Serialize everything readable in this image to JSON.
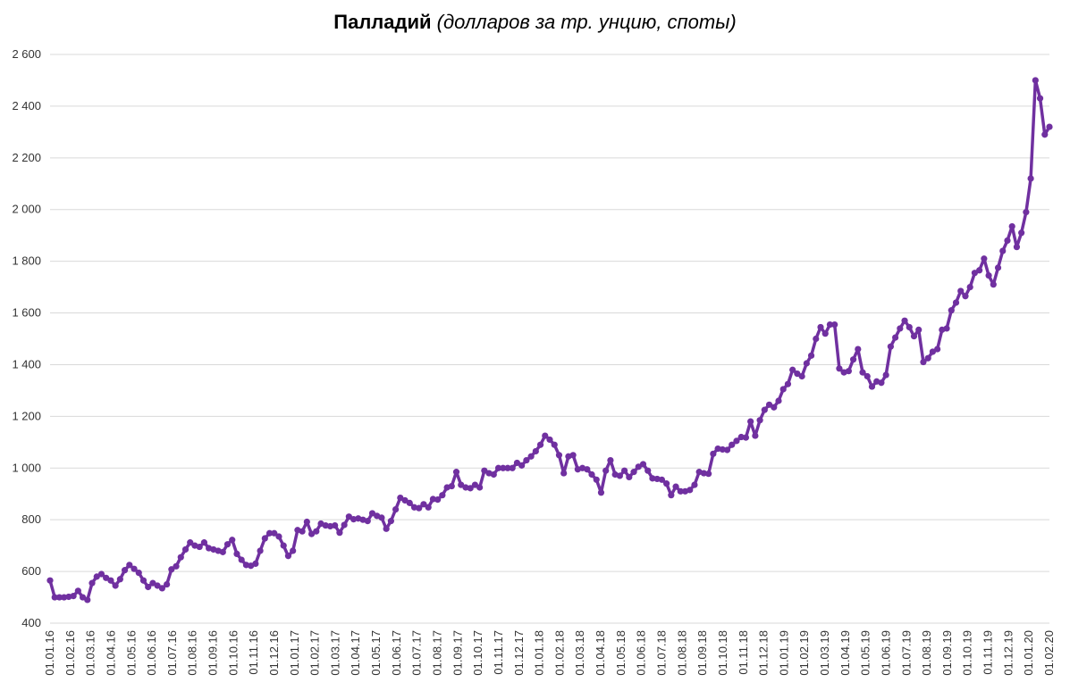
{
  "chart_data": {
    "type": "line",
    "title": "Палладий",
    "subtitle": "(долларов за тр. унцию, споты)",
    "xlabel": "",
    "ylabel": "",
    "ylim": [
      400,
      2600
    ],
    "yticks": [
      "400",
      "600",
      "800",
      "1 000",
      "1 200",
      "1 400",
      "1 600",
      "1 800",
      "2 000",
      "2 200",
      "2 400",
      "2 600"
    ],
    "ytick_values": [
      400,
      600,
      800,
      1000,
      1200,
      1400,
      1600,
      1800,
      2000,
      2200,
      2400,
      2600
    ],
    "xticks": [
      "01.01.16",
      "01.02.16",
      "01.03.16",
      "01.04.16",
      "01.05.16",
      "01.06.16",
      "01.07.16",
      "01.08.16",
      "01.09.16",
      "01.10.16",
      "01.11.16",
      "01.12.16",
      "01.01.17",
      "01.02.17",
      "01.03.17",
      "01.04.17",
      "01.05.17",
      "01.06.17",
      "01.07.17",
      "01.08.17",
      "01.09.17",
      "01.10.17",
      "01.11.17",
      "01.12.17",
      "01.01.18",
      "01.02.18",
      "01.03.18",
      "01.04.18",
      "01.05.18",
      "01.06.18",
      "01.07.18",
      "01.08.18",
      "01.09.18",
      "01.10.18",
      "01.11.18",
      "01.12.18",
      "01.01.19",
      "01.02.19",
      "01.03.19",
      "01.04.19",
      "01.05.19",
      "01.06.19",
      "01.07.19",
      "01.08.19",
      "01.09.19",
      "01.10.19",
      "01.11.19",
      "01.12.19",
      "01.01.20",
      "01.02.20"
    ],
    "grid": true,
    "legend": "none",
    "colors": {
      "line": "#7030a0",
      "grid": "#d9d9d9"
    },
    "series": [
      {
        "values": [
          565,
          500,
          500,
          500,
          502,
          505,
          525,
          500,
          490,
          555,
          580,
          590,
          575,
          565,
          545,
          570,
          605,
          625,
          610,
          595,
          565,
          540,
          555,
          545,
          535,
          550,
          608,
          620,
          655,
          685,
          712,
          700,
          695,
          712,
          690,
          685,
          680,
          675,
          705,
          722,
          668,
          645,
          625,
          622,
          630,
          680,
          728,
          748,
          748,
          735,
          700,
          660,
          680,
          760,
          755,
          792,
          745,
          755,
          785,
          778,
          775,
          778,
          750,
          780,
          812,
          802,
          805,
          800,
          795,
          825,
          815,
          808,
          765,
          795,
          840,
          885,
          875,
          865,
          848,
          845,
          860,
          848,
          880,
          878,
          895,
          925,
          930,
          985,
          935,
          925,
          922,
          935,
          925,
          990,
          980,
          975,
          1000,
          1000,
          1000,
          1000,
          1020,
          1010,
          1030,
          1045,
          1065,
          1090,
          1125,
          1110,
          1090,
          1050,
          980,
          1045,
          1050,
          995,
          1000,
          995,
          975,
          955,
          905,
          990,
          1030,
          975,
          970,
          990,
          965,
          985,
          1005,
          1015,
          990,
          960,
          958,
          955,
          940,
          895,
          928,
          910,
          910,
          915,
          935,
          985,
          980,
          978,
          1055,
          1075,
          1072,
          1070,
          1090,
          1105,
          1120,
          1118,
          1180,
          1125,
          1185,
          1225,
          1245,
          1235,
          1260,
          1305,
          1325,
          1380,
          1365,
          1355,
          1405,
          1435,
          1500,
          1545,
          1520,
          1555,
          1555,
          1385,
          1370,
          1375,
          1420,
          1460,
          1370,
          1355,
          1315,
          1335,
          1330,
          1360,
          1470,
          1505,
          1540,
          1570,
          1545,
          1510,
          1535,
          1410,
          1425,
          1450,
          1460,
          1535,
          1540,
          1610,
          1640,
          1685,
          1665,
          1700,
          1755,
          1765,
          1810,
          1745,
          1710,
          1775,
          1840,
          1880,
          1935,
          1855,
          1910,
          1990,
          2120,
          2500,
          2430,
          2290,
          2320
        ]
      }
    ]
  }
}
